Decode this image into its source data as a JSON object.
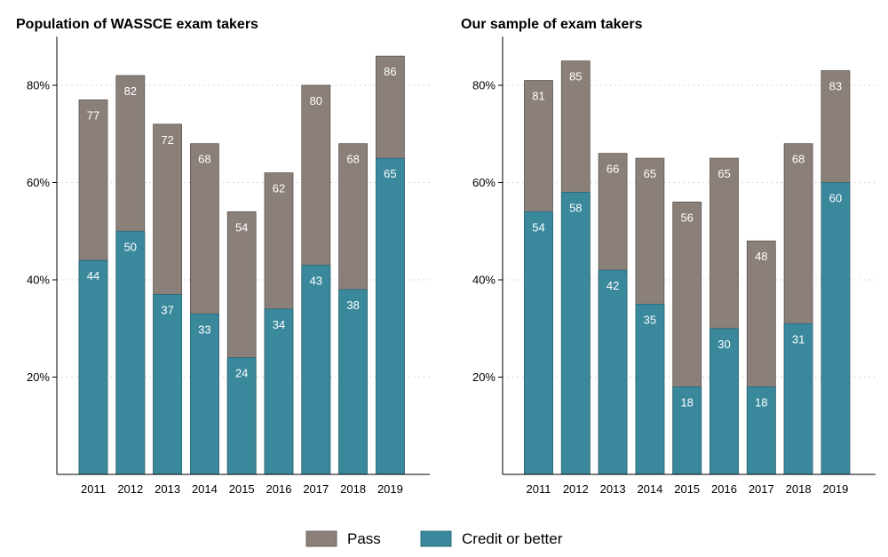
{
  "chart_data": [
    {
      "type": "bar",
      "stacked": "overlay",
      "title": "Population of WASSCE exam takers",
      "categories": [
        "2011",
        "2012",
        "2013",
        "2014",
        "2015",
        "2016",
        "2017",
        "2018",
        "2019"
      ],
      "series": [
        {
          "name": "Pass",
          "color": "#8a8079",
          "values": [
            77,
            82,
            72,
            68,
            54,
            62,
            80,
            68,
            86
          ]
        },
        {
          "name": "Credit or better",
          "color": "#3a889c",
          "values": [
            44,
            50,
            37,
            33,
            24,
            34,
            43,
            38,
            65
          ]
        }
      ],
      "yticks": [
        "20%",
        "40%",
        "60%",
        "80%"
      ],
      "ytick_values": [
        20,
        40,
        60,
        80
      ],
      "ylim": [
        0,
        90
      ],
      "grid": "horizontal-dotted",
      "xlabel": "",
      "ylabel": ""
    },
    {
      "type": "bar",
      "stacked": "overlay",
      "title": "Our sample of exam takers",
      "categories": [
        "2011",
        "2012",
        "2013",
        "2014",
        "2015",
        "2016",
        "2017",
        "2018",
        "2019"
      ],
      "series": [
        {
          "name": "Pass",
          "color": "#8a8079",
          "values": [
            81,
            85,
            66,
            65,
            56,
            65,
            48,
            68,
            83
          ]
        },
        {
          "name": "Credit or better",
          "color": "#3a889c",
          "values": [
            54,
            58,
            42,
            35,
            18,
            30,
            18,
            31,
            60
          ]
        }
      ],
      "yticks": [
        "20%",
        "40%",
        "60%",
        "80%"
      ],
      "ytick_values": [
        20,
        40,
        60,
        80
      ],
      "ylim": [
        0,
        90
      ],
      "grid": "horizontal-dotted",
      "xlabel": "",
      "ylabel": ""
    }
  ],
  "legend": {
    "placement": "bottom-center",
    "items": [
      {
        "label": "Pass",
        "color": "#8a8079"
      },
      {
        "label": "Credit or better",
        "color": "#3a889c"
      }
    ]
  }
}
